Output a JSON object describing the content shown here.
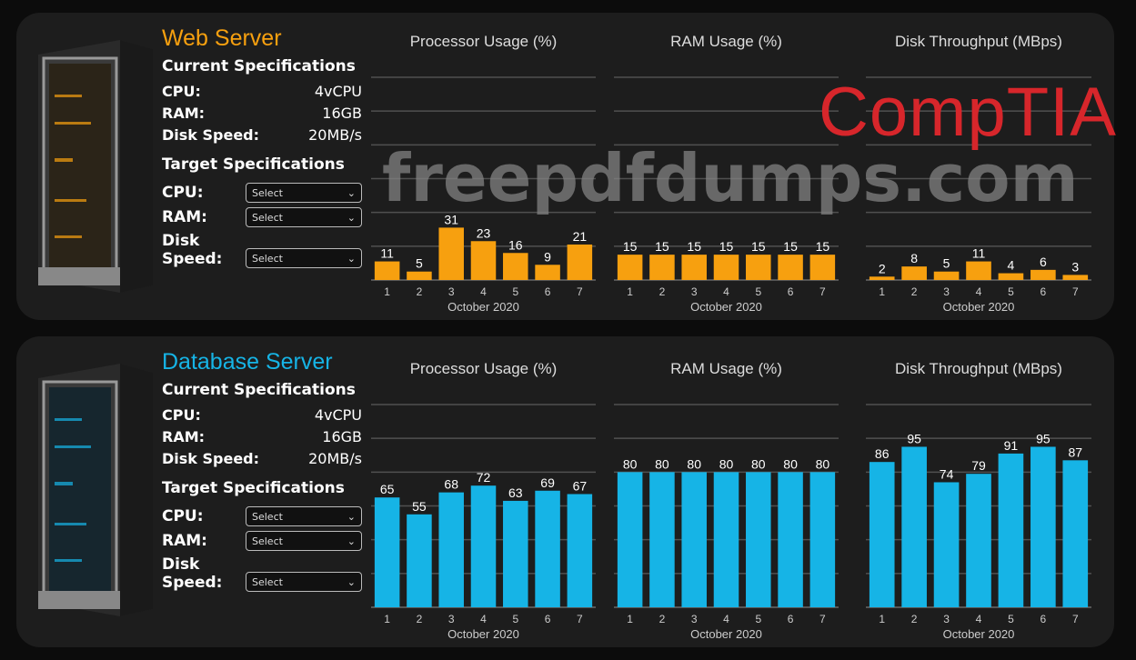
{
  "logo_text": "CompTIA",
  "watermark_text": "freepdfdumps.com",
  "colors": {
    "web_accent": "#f7a00f",
    "db_accent": "#16b4e6",
    "panel_bg": "#1d1d1d",
    "grid": "#555555"
  },
  "servers": [
    {
      "title": "Web Server",
      "accent": "#f7a00f",
      "current_heading": "Current Specifications",
      "current": [
        {
          "label": "CPU:",
          "value": "4vCPU"
        },
        {
          "label": "RAM:",
          "value": "16GB"
        },
        {
          "label": "Disk Speed:",
          "value": "20MB/s"
        }
      ],
      "target_heading": "Target Specifications",
      "target": [
        {
          "label": "CPU:",
          "value": "Select"
        },
        {
          "label": "RAM:",
          "value": "Select"
        },
        {
          "label": "Disk Speed:",
          "value": "Select"
        }
      ]
    },
    {
      "title": "Database Server",
      "accent": "#16b4e6",
      "current_heading": "Current Specifications",
      "current": [
        {
          "label": "CPU:",
          "value": "4vCPU"
        },
        {
          "label": "RAM:",
          "value": "16GB"
        },
        {
          "label": "Disk Speed:",
          "value": "20MB/s"
        }
      ],
      "target_heading": "Target Specifications",
      "target": [
        {
          "label": "CPU:",
          "value": "Select"
        },
        {
          "label": "RAM:",
          "value": "Select"
        },
        {
          "label": "Disk Speed:",
          "value": "Select"
        }
      ]
    }
  ],
  "chart_data": [
    {
      "type": "bar",
      "server": "Web Server",
      "title": "Processor Usage (%)",
      "xlabel": "October 2020",
      "categories": [
        "1",
        "2",
        "3",
        "4",
        "5",
        "6",
        "7"
      ],
      "values": [
        11,
        5,
        31,
        23,
        16,
        9,
        21
      ],
      "ylim": [
        0,
        120
      ],
      "grid": true,
      "color": "#f7a00f"
    },
    {
      "type": "bar",
      "server": "Web Server",
      "title": "RAM Usage (%)",
      "xlabel": "October 2020",
      "categories": [
        "1",
        "2",
        "3",
        "4",
        "5",
        "6",
        "7"
      ],
      "values": [
        15,
        15,
        15,
        15,
        15,
        15,
        15
      ],
      "ylim": [
        0,
        120
      ],
      "grid": true,
      "color": "#f7a00f"
    },
    {
      "type": "bar",
      "server": "Web Server",
      "title": "Disk Throughput (MBps)",
      "xlabel": "October 2020",
      "categories": [
        "1",
        "2",
        "3",
        "4",
        "5",
        "6",
        "7"
      ],
      "values": [
        2,
        8,
        5,
        11,
        4,
        6,
        3
      ],
      "ylim": [
        0,
        120
      ],
      "grid": true,
      "color": "#f7a00f"
    },
    {
      "type": "bar",
      "server": "Database Server",
      "title": "Processor Usage (%)",
      "xlabel": "October 2020",
      "categories": [
        "1",
        "2",
        "3",
        "4",
        "5",
        "6",
        "7"
      ],
      "values": [
        65,
        55,
        68,
        72,
        63,
        69,
        67
      ],
      "ylim": [
        0,
        120
      ],
      "grid": true,
      "color": "#16b4e6"
    },
    {
      "type": "bar",
      "server": "Database Server",
      "title": "RAM Usage (%)",
      "xlabel": "October 2020",
      "categories": [
        "1",
        "2",
        "3",
        "4",
        "5",
        "6",
        "7"
      ],
      "values": [
        80,
        80,
        80,
        80,
        80,
        80,
        80
      ],
      "ylim": [
        0,
        120
      ],
      "grid": true,
      "color": "#16b4e6"
    },
    {
      "type": "bar",
      "server": "Database Server",
      "title": "Disk Throughput (MBps)",
      "xlabel": "October 2020",
      "categories": [
        "1",
        "2",
        "3",
        "4",
        "5",
        "6",
        "7"
      ],
      "values": [
        86,
        95,
        74,
        79,
        91,
        95,
        87
      ],
      "ylim": [
        0,
        120
      ],
      "grid": true,
      "color": "#16b4e6"
    }
  ]
}
